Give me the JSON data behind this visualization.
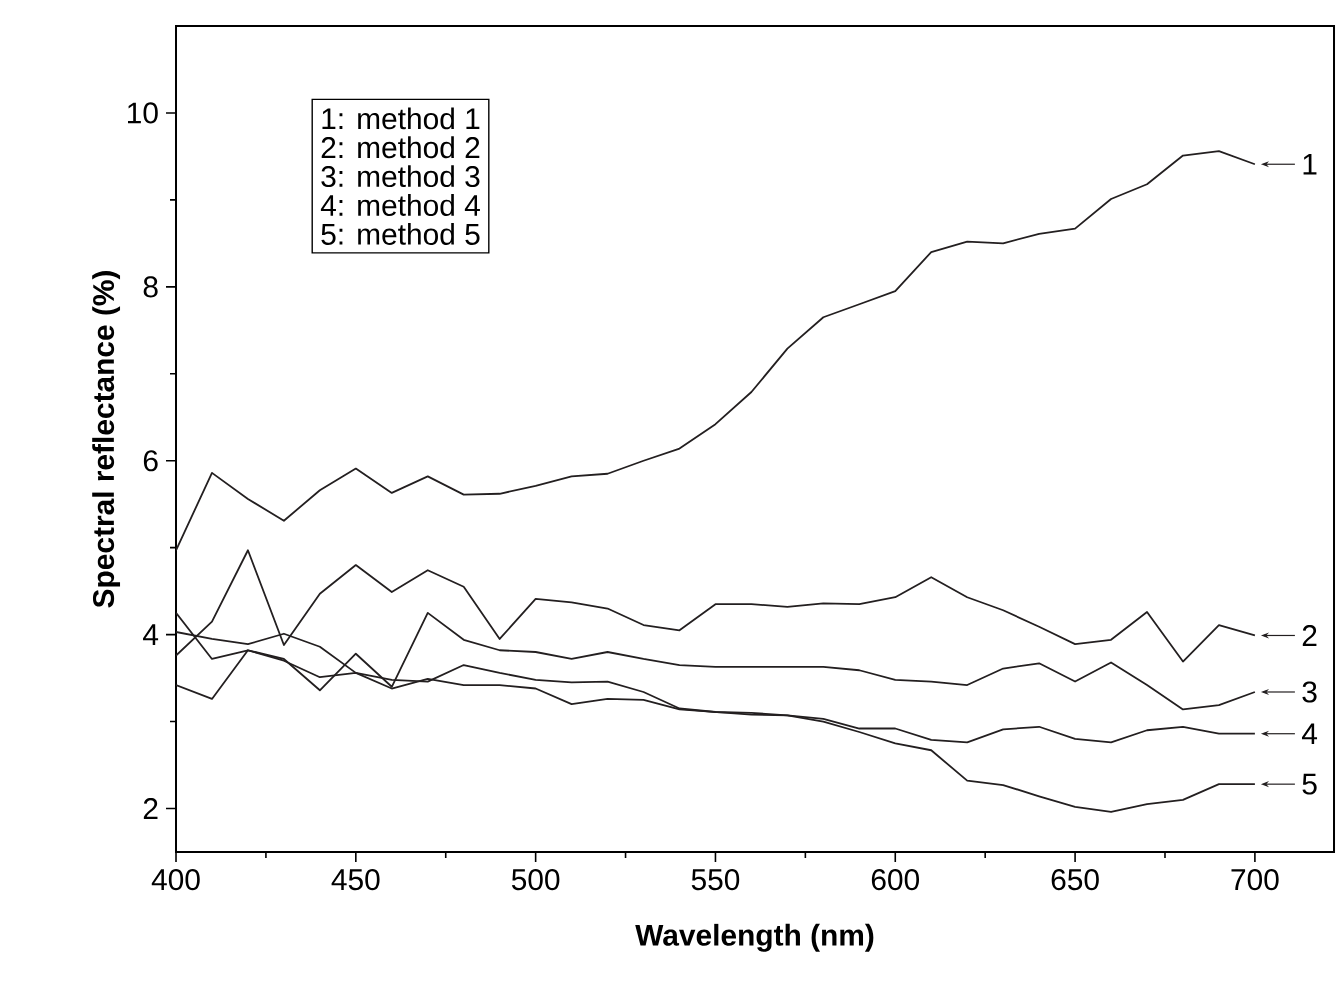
{
  "chart_data": {
    "type": "line",
    "xlabel": "Wavelength (nm)",
    "ylabel": "Spectral reflectance (%)",
    "x": [
      400,
      410,
      420,
      430,
      440,
      450,
      460,
      470,
      480,
      490,
      500,
      510,
      520,
      530,
      540,
      550,
      560,
      570,
      580,
      590,
      600,
      610,
      620,
      630,
      640,
      650,
      660,
      670,
      680,
      690,
      700
    ],
    "xlim": [
      400,
      722
    ],
    "ylim": [
      1.5,
      11
    ],
    "xticks": [
      400,
      450,
      500,
      550,
      600,
      650,
      700
    ],
    "yticks": [
      2,
      4,
      6,
      8,
      10
    ],
    "legend": "right",
    "grid": false,
    "marker": "none",
    "line_style": "solid",
    "annotations": [
      "1: method 1",
      "2: method 2",
      "3: method 3",
      "4: method 4",
      "5: method 5"
    ],
    "series": [
      {
        "name": "1",
        "color": "#231f20",
        "values": [
          4.97,
          5.86,
          5.56,
          5.31,
          5.66,
          5.91,
          5.63,
          5.82,
          5.61,
          5.62,
          5.71,
          5.82,
          5.85,
          6.0,
          6.14,
          6.42,
          6.79,
          7.29,
          7.65,
          7.8,
          7.95,
          8.4,
          8.52,
          8.5,
          8.61,
          8.67,
          9.01,
          9.18,
          9.51,
          9.56,
          9.41
        ]
      },
      {
        "name": "2",
        "color": "#231f20",
        "values": [
          3.76,
          4.15,
          4.97,
          3.88,
          4.47,
          4.8,
          4.49,
          4.74,
          4.55,
          3.95,
          4.41,
          4.37,
          4.3,
          4.11,
          4.05,
          4.35,
          4.35,
          4.32,
          4.36,
          4.35,
          4.43,
          4.66,
          4.43,
          4.28,
          4.09,
          3.89,
          3.94,
          4.26,
          3.69,
          4.11,
          3.99
        ]
      },
      {
        "name": "3",
        "color": "#231f20",
        "values": [
          4.25,
          3.72,
          3.82,
          3.72,
          3.36,
          3.78,
          3.4,
          4.25,
          3.94,
          3.82,
          3.8,
          3.72,
          3.8,
          3.72,
          3.65,
          3.63,
          3.63,
          3.63,
          3.63,
          3.59,
          3.48,
          3.46,
          3.42,
          3.61,
          3.67,
          3.46,
          3.68,
          3.42,
          3.14,
          3.19,
          3.34
        ]
      },
      {
        "name": "4",
        "color": "#231f20",
        "values": [
          4.03,
          3.95,
          3.89,
          4.01,
          3.86,
          3.56,
          3.48,
          3.46,
          3.65,
          3.56,
          3.48,
          3.45,
          3.46,
          3.34,
          3.15,
          3.11,
          3.1,
          3.07,
          3.03,
          2.92,
          2.92,
          2.79,
          2.76,
          2.91,
          2.94,
          2.8,
          2.76,
          2.9,
          2.94,
          2.86,
          2.86
        ]
      },
      {
        "name": "5",
        "color": "#231f20",
        "values": [
          3.42,
          3.26,
          3.82,
          3.7,
          3.51,
          3.56,
          3.38,
          3.49,
          3.42,
          3.42,
          3.38,
          3.2,
          3.26,
          3.25,
          3.14,
          3.11,
          3.08,
          3.07,
          3.0,
          2.88,
          2.75,
          2.67,
          2.32,
          2.27,
          2.14,
          2.02,
          1.96,
          2.05,
          2.1,
          2.28,
          2.28
        ]
      }
    ]
  }
}
